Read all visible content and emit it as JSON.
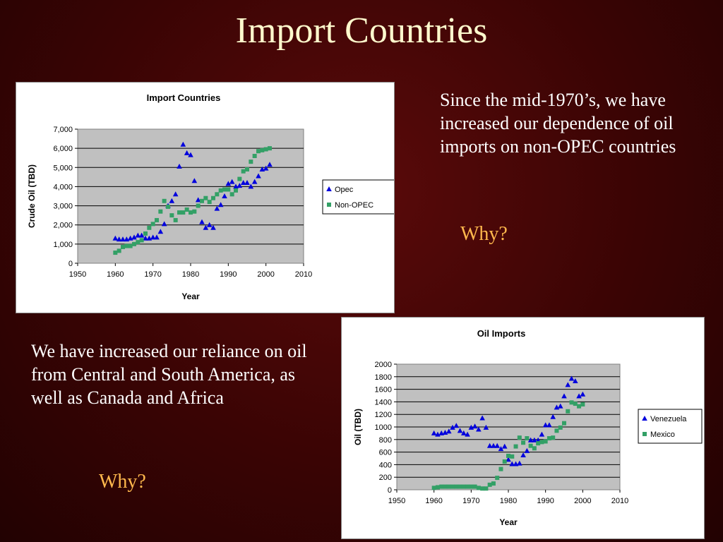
{
  "slide": {
    "title": "Import Countries",
    "right_text": "Since the mid-1970’s, we have increased our dependence of oil imports on non-OPEC countries",
    "right_why": "Why?",
    "left_text": "We have increased our reliance on oil from Central and South America, as well as Canada and Africa",
    "left_why": "Why?"
  },
  "colors": {
    "background": "#3a0404",
    "title": "#fffacd",
    "why": "#ffb84d",
    "plot_area": "#c0c0c0",
    "series_blue": "#0000dd",
    "series_green": "#33a066"
  },
  "chart_data": [
    {
      "type": "scatter",
      "title": "Import Countries",
      "xlabel": "Year",
      "ylabel": "Crude Oil (TBD)",
      "xlim": [
        1950,
        2010
      ],
      "ylim": [
        0,
        7000
      ],
      "xticks": [
        "1950",
        "1960",
        "1970",
        "1980",
        "1990",
        "2000",
        "2010"
      ],
      "yticks": [
        "0",
        "1,000",
        "2,000",
        "3,000",
        "4,000",
        "5,000",
        "6,000",
        "7,000"
      ],
      "grid": true,
      "legend": "right",
      "series": [
        {
          "name": "Opec",
          "marker": "triangle",
          "color": "#0000dd",
          "points": [
            [
              1960,
              1300
            ],
            [
              1961,
              1250
            ],
            [
              1962,
              1250
            ],
            [
              1963,
              1250
            ],
            [
              1964,
              1300
            ],
            [
              1965,
              1350
            ],
            [
              1966,
              1450
            ],
            [
              1967,
              1450
            ],
            [
              1968,
              1300
            ],
            [
              1969,
              1300
            ],
            [
              1970,
              1350
            ],
            [
              1971,
              1350
            ],
            [
              1972,
              1650
            ],
            [
              1973,
              2050
            ],
            [
              1974,
              3000
            ],
            [
              1975,
              3250
            ],
            [
              1976,
              3600
            ],
            [
              1977,
              5050
            ],
            [
              1978,
              6200
            ],
            [
              1979,
              5750
            ],
            [
              1980,
              5650
            ],
            [
              1981,
              4300
            ],
            [
              1982,
              3300
            ],
            [
              1983,
              2150
            ],
            [
              1984,
              1850
            ],
            [
              1985,
              2000
            ],
            [
              1986,
              1850
            ],
            [
              1987,
              2850
            ],
            [
              1988,
              3050
            ],
            [
              1989,
              3500
            ],
            [
              1990,
              4150
            ],
            [
              1991,
              4250
            ],
            [
              1992,
              4000
            ],
            [
              1993,
              4050
            ],
            [
              1994,
              4200
            ],
            [
              1995,
              4200
            ],
            [
              1996,
              4000
            ],
            [
              1997,
              4250
            ],
            [
              1998,
              4550
            ],
            [
              1999,
              4900
            ],
            [
              2000,
              4950
            ],
            [
              2001,
              5150
            ]
          ]
        },
        {
          "name": "Non-OPEC",
          "marker": "square",
          "color": "#33a066",
          "points": [
            [
              1960,
              550
            ],
            [
              1961,
              650
            ],
            [
              1962,
              850
            ],
            [
              1963,
              900
            ],
            [
              1964,
              900
            ],
            [
              1965,
              1000
            ],
            [
              1966,
              1100
            ],
            [
              1967,
              1200
            ],
            [
              1968,
              1550
            ],
            [
              1969,
              1850
            ],
            [
              1970,
              2050
            ],
            [
              1971,
              2250
            ],
            [
              1972,
              2700
            ],
            [
              1973,
              3250
            ],
            [
              1974,
              2950
            ],
            [
              1975,
              2500
            ],
            [
              1976,
              2250
            ],
            [
              1977,
              2650
            ],
            [
              1978,
              2650
            ],
            [
              1979,
              2800
            ],
            [
              1980,
              2650
            ],
            [
              1981,
              2700
            ],
            [
              1982,
              3000
            ],
            [
              1983,
              3250
            ],
            [
              1984,
              3400
            ],
            [
              1985,
              3200
            ],
            [
              1986,
              3400
            ],
            [
              1987,
              3600
            ],
            [
              1988,
              3800
            ],
            [
              1989,
              3850
            ],
            [
              1990,
              3850
            ],
            [
              1991,
              3600
            ],
            [
              1992,
              3800
            ],
            [
              1993,
              4400
            ],
            [
              1994,
              4800
            ],
            [
              1995,
              4900
            ],
            [
              1996,
              5300
            ],
            [
              1997,
              5600
            ],
            [
              1998,
              5850
            ],
            [
              1999,
              5900
            ],
            [
              2000,
              5950
            ],
            [
              2001,
              6000
            ]
          ]
        }
      ]
    },
    {
      "type": "scatter",
      "title": "Oil Imports",
      "xlabel": "Year",
      "ylabel": "Oil (TBD)",
      "xlim": [
        1950,
        2010
      ],
      "ylim": [
        0,
        2000
      ],
      "xticks": [
        "1950",
        "1960",
        "1970",
        "1980",
        "1990",
        "2000",
        "2010"
      ],
      "yticks": [
        "0",
        "200",
        "400",
        "600",
        "800",
        "1000",
        "1200",
        "1400",
        "1600",
        "1800",
        "2000"
      ],
      "grid": true,
      "legend": "right",
      "series": [
        {
          "name": "Venezuela",
          "marker": "triangle",
          "color": "#0000dd",
          "points": [
            [
              1960,
              900
            ],
            [
              1961,
              880
            ],
            [
              1962,
              900
            ],
            [
              1963,
              910
            ],
            [
              1964,
              930
            ],
            [
              1965,
              990
            ],
            [
              1966,
              1020
            ],
            [
              1967,
              940
            ],
            [
              1968,
              900
            ],
            [
              1969,
              880
            ],
            [
              1970,
              990
            ],
            [
              1971,
              1010
            ],
            [
              1972,
              960
            ],
            [
              1973,
              1140
            ],
            [
              1974,
              990
            ],
            [
              1975,
              700
            ],
            [
              1976,
              700
            ],
            [
              1977,
              700
            ],
            [
              1978,
              650
            ],
            [
              1979,
              690
            ],
            [
              1980,
              480
            ],
            [
              1981,
              410
            ],
            [
              1982,
              410
            ],
            [
              1983,
              420
            ],
            [
              1984,
              550
            ],
            [
              1985,
              620
            ],
            [
              1986,
              790
            ],
            [
              1987,
              790
            ],
            [
              1988,
              790
            ],
            [
              1989,
              880
            ],
            [
              1990,
              1030
            ],
            [
              1991,
              1030
            ],
            [
              1992,
              1160
            ],
            [
              1993,
              1310
            ],
            [
              1994,
              1330
            ],
            [
              1995,
              1490
            ],
            [
              1996,
              1670
            ],
            [
              1997,
              1770
            ],
            [
              1998,
              1730
            ],
            [
              1999,
              1490
            ],
            [
              2000,
              1520
            ]
          ]
        },
        {
          "name": "Mexico",
          "marker": "square",
          "color": "#33a066",
          "points": [
            [
              1960,
              30
            ],
            [
              1961,
              40
            ],
            [
              1962,
              50
            ],
            [
              1963,
              50
            ],
            [
              1964,
              50
            ],
            [
              1965,
              50
            ],
            [
              1966,
              50
            ],
            [
              1967,
              50
            ],
            [
              1968,
              50
            ],
            [
              1969,
              50
            ],
            [
              1970,
              50
            ],
            [
              1971,
              50
            ],
            [
              1972,
              30
            ],
            [
              1973,
              20
            ],
            [
              1974,
              20
            ],
            [
              1975,
              80
            ],
            [
              1976,
              100
            ],
            [
              1977,
              190
            ],
            [
              1978,
              330
            ],
            [
              1979,
              450
            ],
            [
              1980,
              540
            ],
            [
              1981,
              530
            ],
            [
              1982,
              690
            ],
            [
              1983,
              830
            ],
            [
              1984,
              750
            ],
            [
              1985,
              820
            ],
            [
              1986,
              700
            ],
            [
              1987,
              660
            ],
            [
              1988,
              740
            ],
            [
              1989,
              760
            ],
            [
              1990,
              770
            ],
            [
              1991,
              820
            ],
            [
              1992,
              830
            ],
            [
              1993,
              940
            ],
            [
              1994,
              990
            ],
            [
              1995,
              1060
            ],
            [
              1996,
              1250
            ],
            [
              1997,
              1390
            ],
            [
              1998,
              1370
            ],
            [
              1999,
              1330
            ],
            [
              2000,
              1360
            ]
          ]
        }
      ]
    }
  ]
}
